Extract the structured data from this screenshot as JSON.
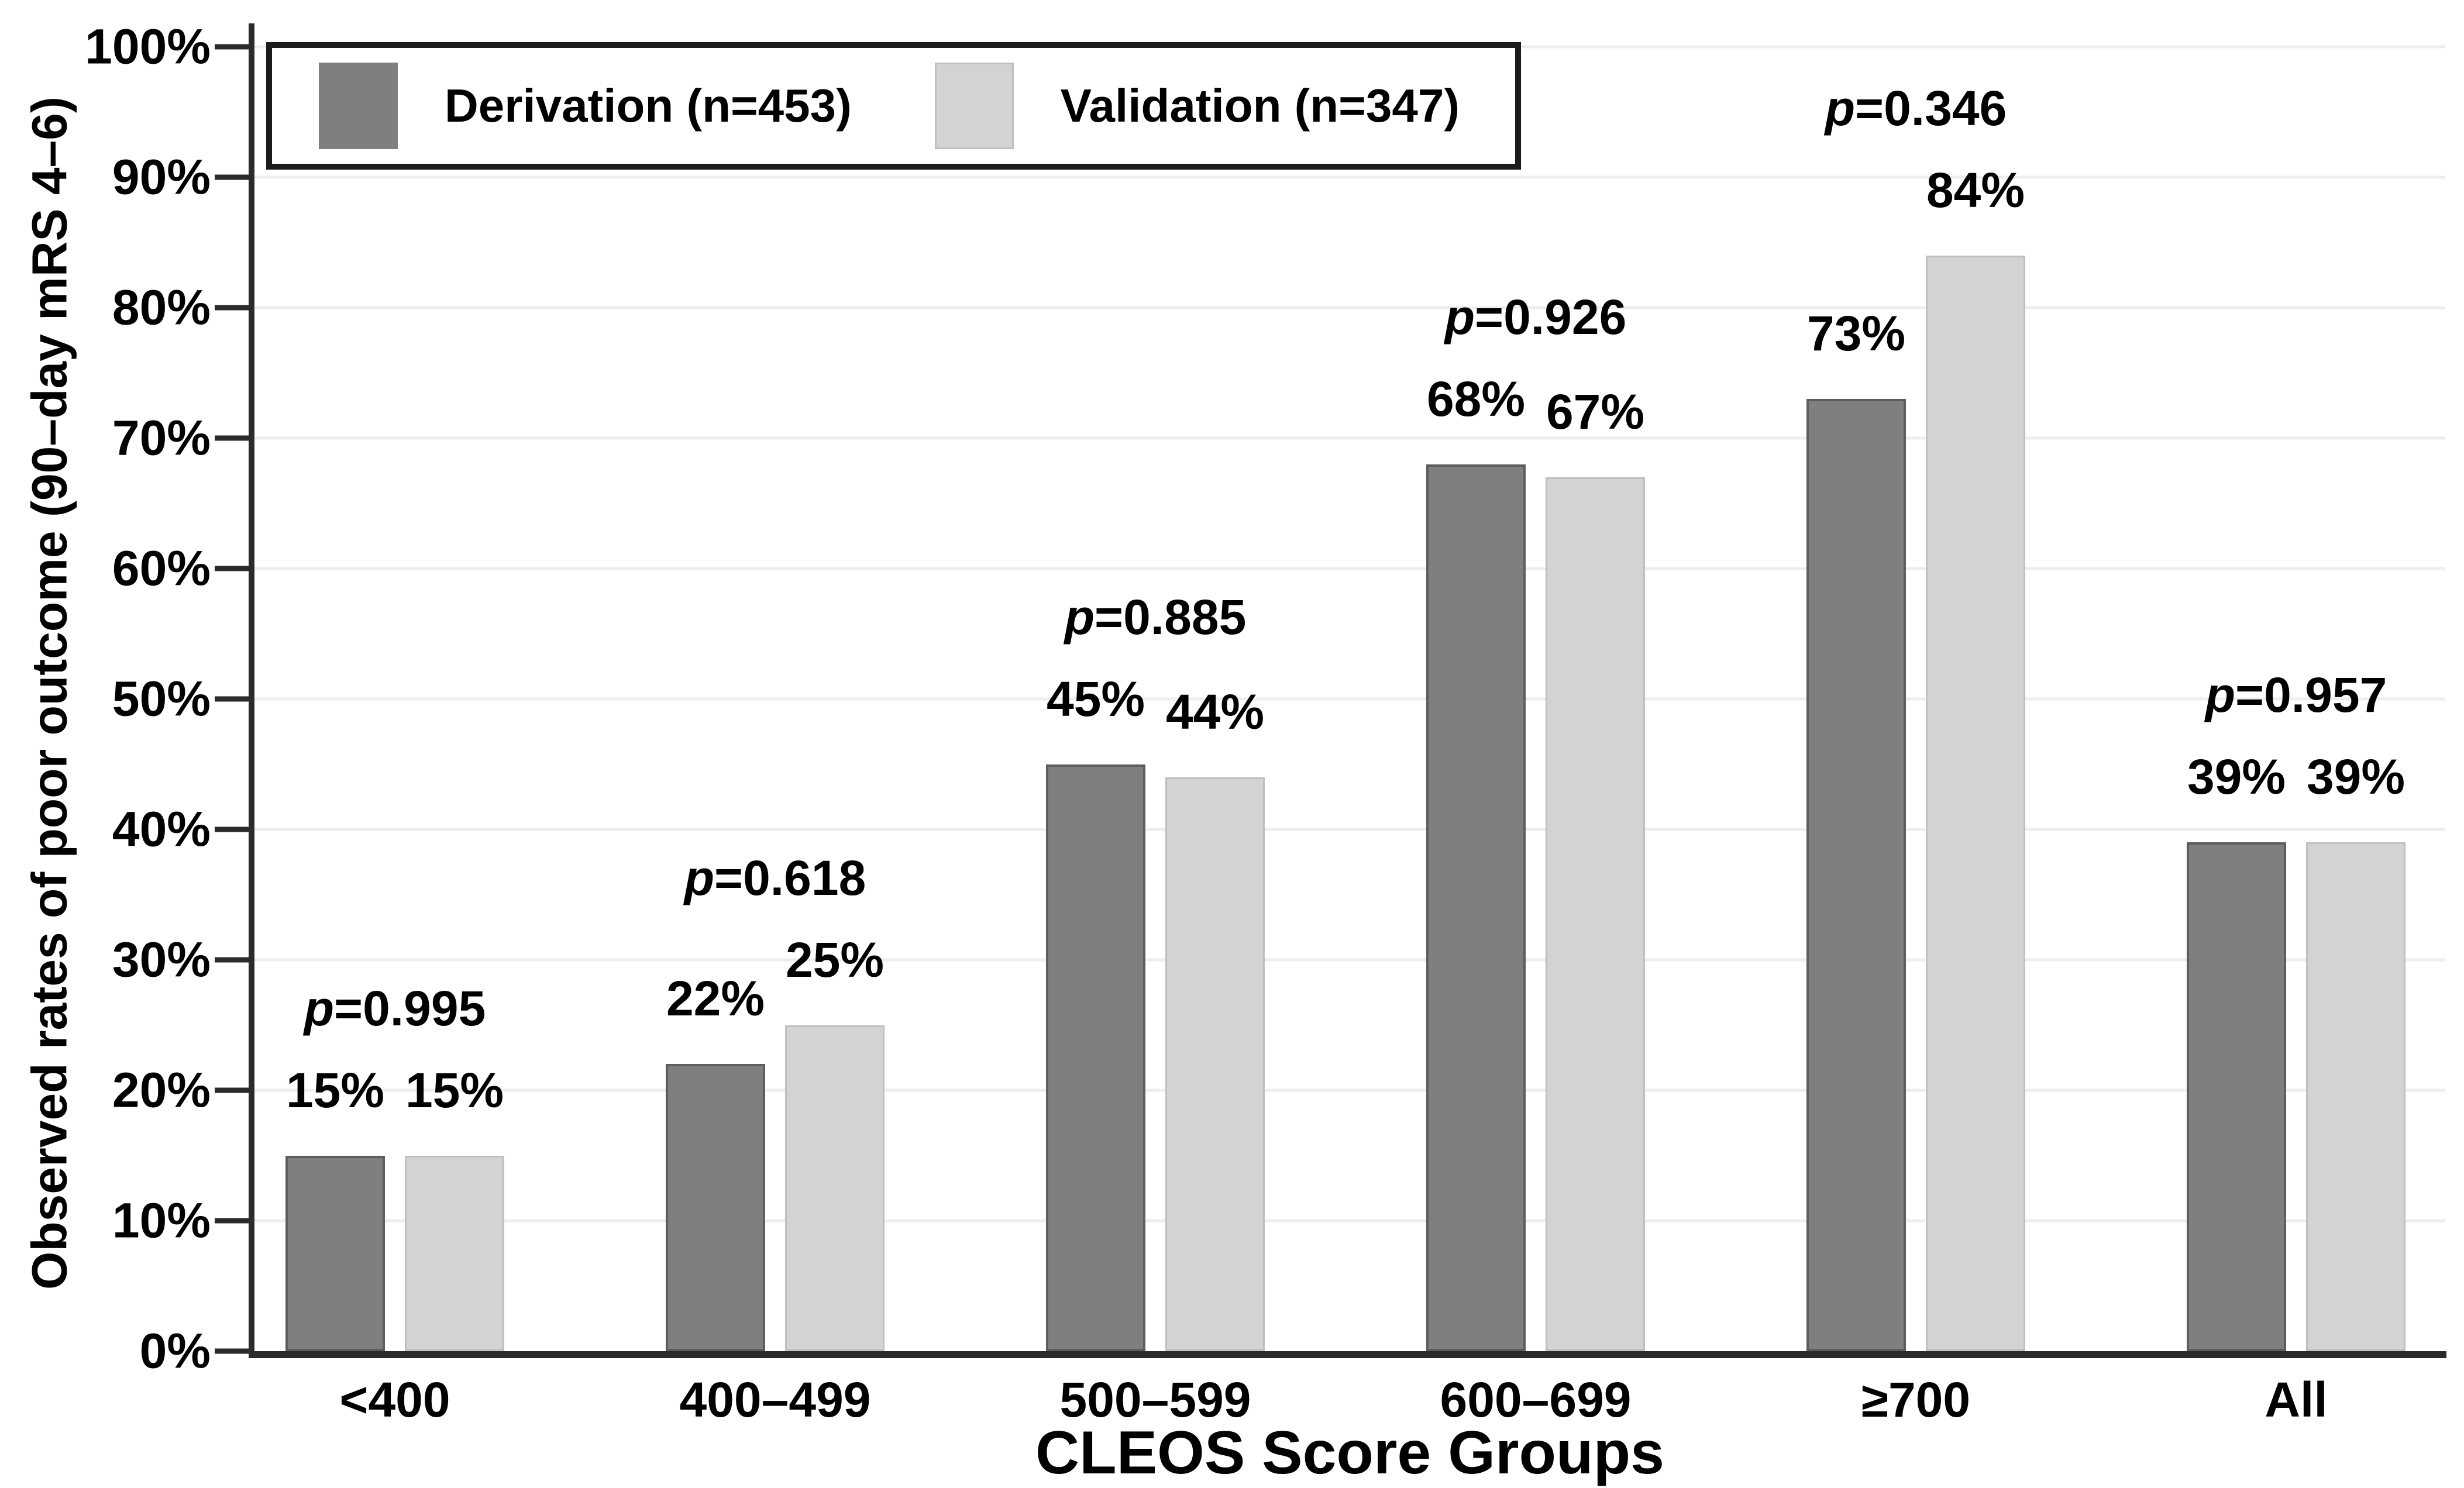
{
  "chart_data": {
    "type": "bar",
    "title": "",
    "xlabel": "CLEOS Score Groups",
    "ylabel": "Observed rates of poor outcome (90–day mRS 4–6)",
    "categories": [
      "<400",
      "400–499",
      "500–599",
      "600–699",
      "≥700",
      "All"
    ],
    "series": [
      {
        "name": "Derivation (n=453)",
        "color": "#7f7f7f",
        "values": [
          15,
          22,
          45,
          68,
          73,
          39
        ]
      },
      {
        "name": "Validation (n=347)",
        "color": "#d3d3d3",
        "values": [
          15,
          25,
          44,
          67,
          84,
          39
        ]
      }
    ],
    "value_labels": [
      [
        "15%",
        "15%"
      ],
      [
        "22%",
        "25%"
      ],
      [
        "45%",
        "44%"
      ],
      [
        "68%",
        "67%"
      ],
      [
        "73%",
        "84%"
      ],
      [
        "39%",
        "39%"
      ]
    ],
    "p_values": [
      "p=0.995",
      "p=0.618",
      "p=0.885",
      "p=0.926",
      "p=0.346",
      "p=0.957"
    ],
    "yticks": [
      "0%",
      "10%",
      "20%",
      "30%",
      "40%",
      "50%",
      "60%",
      "70%",
      "80%",
      "90%",
      "100%"
    ],
    "ylim": [
      0,
      100
    ],
    "grid": true,
    "legend_position": "top-left",
    "colors": {
      "axis": "#2b2b2b",
      "gridline": "#eeeeee",
      "derivation": "#7f7f7f",
      "validation": "#d3d3d3"
    }
  }
}
